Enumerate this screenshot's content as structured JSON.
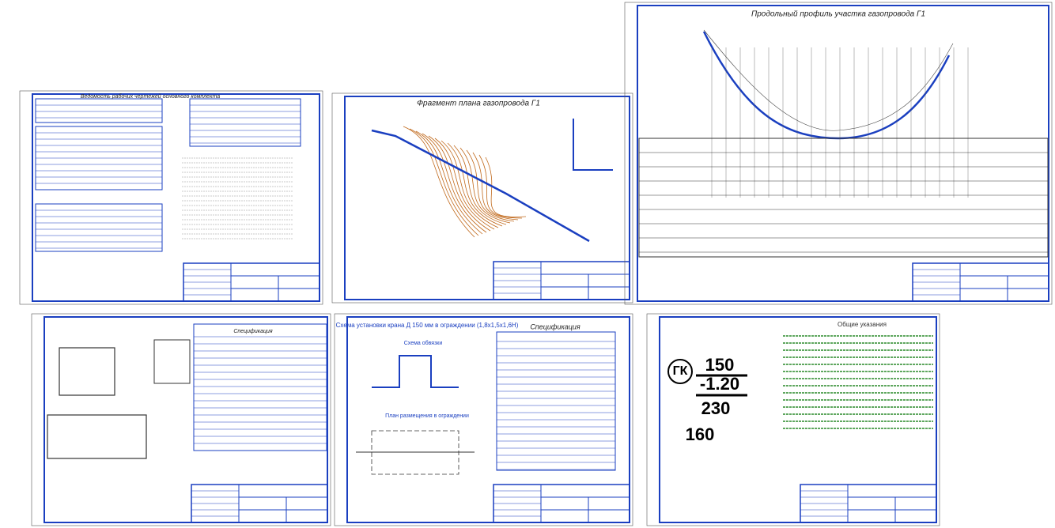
{
  "sheets": [
    {
      "title": "Ведомость рабочих чертежей основного комплекта"
    },
    {
      "title": "Фрагмент плана газопровода Г1"
    },
    {
      "title": "Продольный профиль участка газопровода Г1"
    },
    {
      "title": "Спецификация"
    },
    {
      "title": "Схема установки крана Д 150 мм в ограждении (1,8х1,5х1,6Н)",
      "subtitles": [
        "Схема обвязки",
        "План размещения в ограждении"
      ],
      "table_title": "Спецификация"
    },
    {
      "title": "Общие указания",
      "markers": [
        "ГК",
        "150",
        "-1.20",
        "230",
        "160"
      ]
    }
  ]
}
